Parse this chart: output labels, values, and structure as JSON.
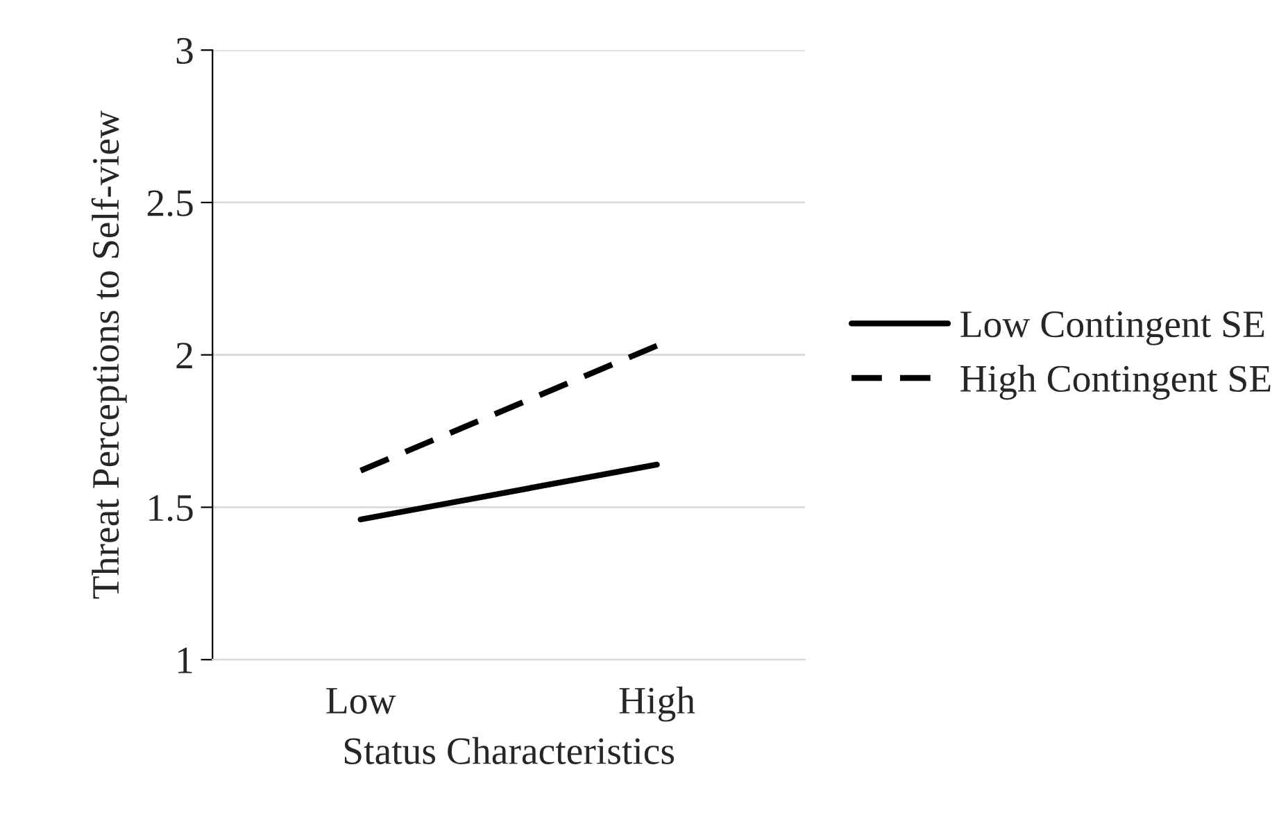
{
  "chart_data": {
    "type": "line",
    "xlabel": "Status Characteristics",
    "ylabel": "Threat Perceptions to Self-view",
    "categories": [
      "Low",
      "High"
    ],
    "series": [
      {
        "name": "Low Contingent SE",
        "color": "#000000",
        "line_style": "solid",
        "values": [
          1.46,
          1.64
        ]
      },
      {
        "name": "High Contingent SE",
        "color": "#000000",
        "line_style": "dashed",
        "values": [
          1.62,
          2.03
        ]
      }
    ],
    "ylim": [
      1,
      3
    ],
    "yticks": [
      1,
      1.5,
      2,
      2.5,
      3
    ],
    "grid": "y",
    "legend": "right",
    "marker": "none"
  }
}
